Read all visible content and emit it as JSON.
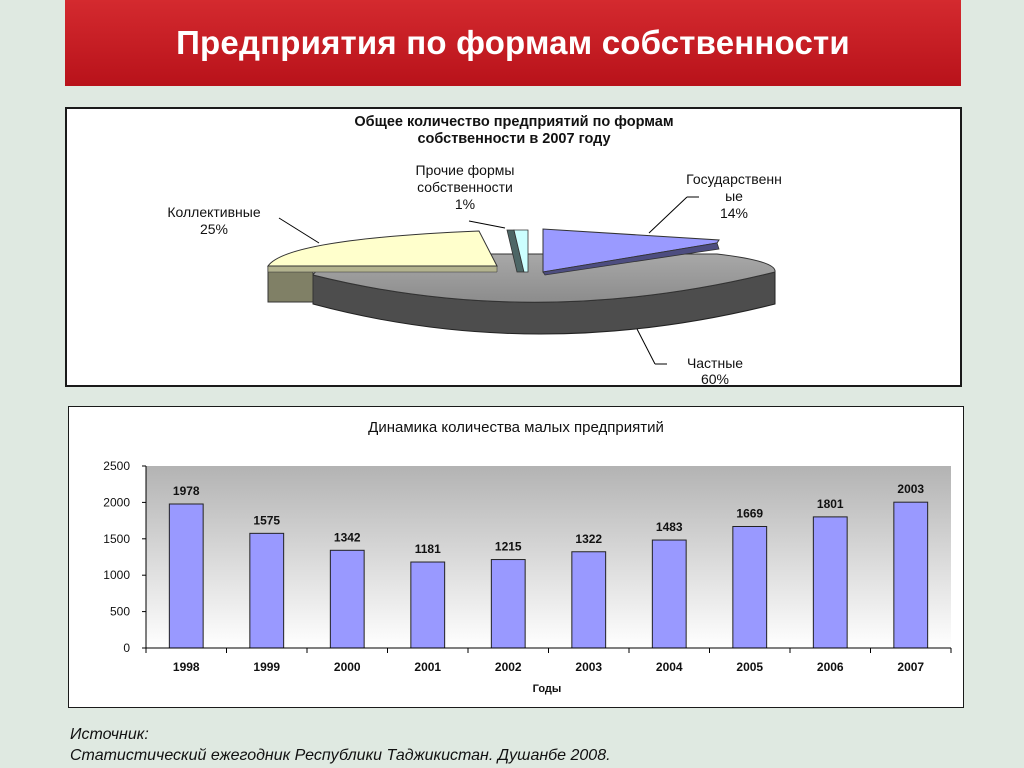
{
  "header": {
    "title": "Предприятия по формам собственности"
  },
  "chart_data": [
    {
      "type": "pie",
      "title_lines": [
        "Общее количество предприятий по формам",
        "собственности в 2007 году"
      ],
      "slices": [
        {
          "label_lines": [
            "Государственн",
            "ые"
          ],
          "pct_label": "14%",
          "value": 14,
          "color": "#9a9aff"
        },
        {
          "label_lines": [
            "Частные"
          ],
          "pct_label": "60%",
          "value": 60,
          "color": "#999999"
        },
        {
          "label_lines": [
            "Коллективные"
          ],
          "pct_label": "25%",
          "value": 25,
          "color": "#ffffcc"
        },
        {
          "label_lines": [
            "Прочие формы",
            "собственности"
          ],
          "pct_label": "1%",
          "value": 1,
          "color": "#ccffff"
        }
      ]
    },
    {
      "type": "bar",
      "title": "Динамика количества малых предприятий",
      "xlabel": "Годы",
      "ylabel": "",
      "categories": [
        "1998",
        "1999",
        "2000",
        "2001",
        "2002",
        "2003",
        "2004",
        "2005",
        "2006",
        "2007"
      ],
      "values": [
        1978,
        1575,
        1342,
        1181,
        1215,
        1322,
        1483,
        1669,
        1801,
        2003
      ],
      "ylim": [
        0,
        2500
      ],
      "yticks": [
        "0",
        "500",
        "1000",
        "1500",
        "2000",
        "2500"
      ],
      "bar_color": "#9999ff",
      "grid": false
    }
  ],
  "source": {
    "label": "Источник:",
    "text": "Статистический ежегодник Республики Таджикистан. Душанбе 2008."
  }
}
